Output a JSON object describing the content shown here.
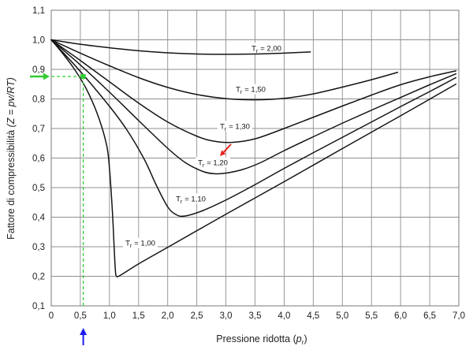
{
  "chart_data": {
    "type": "line",
    "xlabel": {
      "main": "Pressione ridotta",
      "open": "(",
      "var": "p",
      "sub": "r",
      "close": ")"
    },
    "ylabel": {
      "main": "Fattore di compressibilità",
      "formula": "(Z = pv/RT)"
    },
    "xlim": [
      0,
      7.0
    ],
    "ylim": [
      0.1,
      1.1
    ],
    "grid": true,
    "x_ticks": [
      {
        "label": "0",
        "value": 0
      },
      {
        "label": "0,5",
        "value": 0.5
      },
      {
        "label": "1,0",
        "value": 1.0
      },
      {
        "label": "1,5",
        "value": 1.5
      },
      {
        "label": "2,0",
        "value": 2.0
      },
      {
        "label": "2,5",
        "value": 2.5
      },
      {
        "label": "3,0",
        "value": 3.0
      },
      {
        "label": "3,5",
        "value": 3.5
      },
      {
        "label": "4,0",
        "value": 4.0
      },
      {
        "label": "4,5",
        "value": 4.5
      },
      {
        "label": "5,0",
        "value": 5.0
      },
      {
        "label": "5,5",
        "value": 5.5
      },
      {
        "label": "6,0",
        "value": 6.0
      },
      {
        "label": "6,5",
        "value": 6.5
      },
      {
        "label": "7,0",
        "value": 7.0
      }
    ],
    "y_ticks": [
      {
        "label": "0,1",
        "value": 0.1
      },
      {
        "label": "0,2",
        "value": 0.2
      },
      {
        "label": "0,3",
        "value": 0.3
      },
      {
        "label": "0,4",
        "value": 0.4
      },
      {
        "label": "0,5",
        "value": 0.5
      },
      {
        "label": "0,6",
        "value": 0.6
      },
      {
        "label": "0,7",
        "value": 0.7
      },
      {
        "label": "0,8",
        "value": 0.8
      },
      {
        "label": "0,9",
        "value": 0.9
      },
      {
        "label": "1,0",
        "value": 1.0
      },
      {
        "label": "1,1",
        "value": 1.1
      }
    ],
    "series_label": {
      "symbol": "T",
      "sub": "r"
    },
    "series": [
      {
        "tr": 2.0,
        "label": "= 2,00",
        "x": [
          0,
          0.5,
          1,
          1.5,
          2,
          2.5,
          3,
          3.5,
          4,
          4.45
        ],
        "y": [
          1,
          0.985,
          0.973,
          0.963,
          0.956,
          0.952,
          0.951,
          0.952,
          0.955,
          0.959
        ]
      },
      {
        "tr": 1.5,
        "label": "= 1,50",
        "x": [
          0,
          0.5,
          1,
          1.5,
          2,
          2.5,
          3,
          3.5,
          4,
          4.5,
          5,
          5.5,
          5.95
        ],
        "y": [
          1,
          0.955,
          0.912,
          0.872,
          0.839,
          0.815,
          0.801,
          0.797,
          0.802,
          0.817,
          0.84,
          0.865,
          0.89
        ]
      },
      {
        "tr": 1.3,
        "label": "= 1,30",
        "x": [
          0,
          0.5,
          1,
          1.5,
          2,
          2.5,
          2.8,
          3.1,
          3.5,
          4,
          4.5,
          5,
          5.5,
          6,
          6.5,
          6.95
        ],
        "y": [
          1,
          0.93,
          0.858,
          0.786,
          0.722,
          0.674,
          0.657,
          0.653,
          0.665,
          0.7,
          0.738,
          0.776,
          0.813,
          0.848,
          0.875,
          0.895
        ]
      },
      {
        "tr": 1.2,
        "label": "= 1,20",
        "x": [
          0,
          0.5,
          1,
          1.5,
          2,
          2.3,
          2.6,
          2.8,
          3,
          3.3,
          3.6,
          4,
          4.5,
          5,
          5.5,
          6,
          6.5,
          6.95
        ],
        "y": [
          1,
          0.915,
          0.823,
          0.727,
          0.633,
          0.585,
          0.555,
          0.547,
          0.549,
          0.562,
          0.585,
          0.625,
          0.672,
          0.718,
          0.762,
          0.805,
          0.848,
          0.885
        ]
      },
      {
        "tr": 1.1,
        "label": "= 1,10",
        "x": [
          0,
          0.5,
          1,
          1.3,
          1.6,
          1.8,
          2,
          2.15,
          2.3,
          2.6,
          3,
          3.5,
          4,
          4.5,
          5,
          5.5,
          6,
          6.5,
          6.95
        ],
        "y": [
          1,
          0.893,
          0.775,
          0.695,
          0.595,
          0.51,
          0.435,
          0.408,
          0.404,
          0.422,
          0.458,
          0.51,
          0.565,
          0.618,
          0.67,
          0.722,
          0.774,
          0.825,
          0.872
        ]
      },
      {
        "tr": 1.0,
        "label": "= 1,00",
        "x": [
          0,
          0.2,
          0.4,
          0.6,
          0.8,
          0.95,
          1,
          1.05,
          1.08,
          1.1,
          1.12,
          1.2,
          1.5,
          2,
          3,
          4,
          5,
          6,
          6.95
        ],
        "y": [
          1,
          0.953,
          0.9,
          0.835,
          0.745,
          0.645,
          0.565,
          0.42,
          0.3,
          0.225,
          0.2,
          0.205,
          0.242,
          0.298,
          0.41,
          0.52,
          0.632,
          0.743,
          0.85
        ]
      }
    ],
    "highlight": {
      "x": 0.55,
      "y": 0.876
    }
  },
  "colors": {
    "background": "#ffffff",
    "grid": "#8f8f8f",
    "curve": "#141414",
    "text": "#222222",
    "highlight": "#33cc33",
    "blue_arrow": "#1c1cf0",
    "red_arrow": "#e8231c"
  }
}
